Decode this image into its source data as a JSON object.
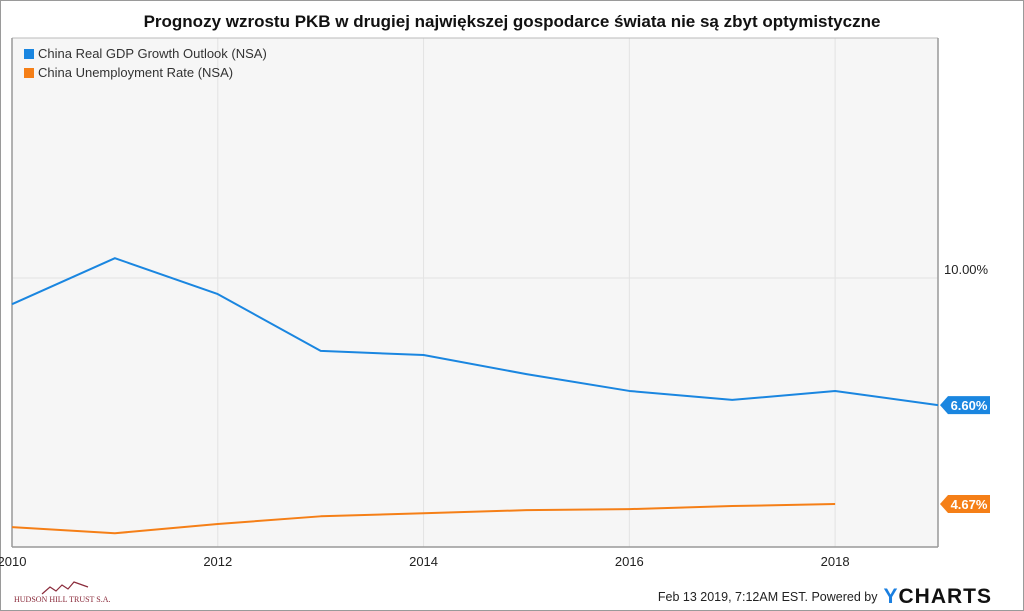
{
  "title": "Prognozy wzrostu PKB w drugiej największej gospodarce świata nie są zbyt optymistyczne",
  "legend": [
    {
      "label": "China Real GDP Growth Outlook (NSA)",
      "color": "#1a86e0"
    },
    {
      "label": "China Unemployment Rate (NSA)",
      "color": "#f57f17"
    }
  ],
  "footer": {
    "timestamp": "Feb 13 2019, 7:12AM EST.",
    "powered_by": "Powered by",
    "brand_y": "Y",
    "brand_rest": "CHARTS"
  },
  "logo_text": "HUDSON HILL TRUST S.A.",
  "chart_data": {
    "type": "line",
    "title": "Prognozy wzrostu PKB w drugiej największej gospodarce świata nie są zbyt optymistyczne",
    "xlabel": "",
    "ylabel": "",
    "x_ticks": [
      "2010",
      "2012",
      "2014",
      "2016",
      "2018"
    ],
    "x_range": [
      2010,
      2019
    ],
    "y_ticks": [
      "10.00%"
    ],
    "grid": true,
    "legend_position": "top-left",
    "series": [
      {
        "name": "China Real GDP Growth Outlook (NSA)",
        "color": "#1a86e0",
        "x": [
          2010,
          2011,
          2012,
          2013,
          2014,
          2015,
          2016,
          2017,
          2018,
          2019
        ],
        "values": [
          9.3,
          10.53,
          9.57,
          8.05,
          7.94,
          7.43,
          6.98,
          6.74,
          6.98,
          6.6
        ],
        "last_label": "6.60%"
      },
      {
        "name": "China Unemployment Rate (NSA)",
        "color": "#f57f17",
        "x": [
          2010,
          2011,
          2012,
          2013,
          2014,
          2015,
          2016,
          2017,
          2018
        ],
        "values": [
          4.22,
          4.1,
          4.28,
          4.43,
          4.49,
          4.55,
          4.57,
          4.63,
          4.67
        ],
        "last_label": "4.67%"
      }
    ]
  }
}
